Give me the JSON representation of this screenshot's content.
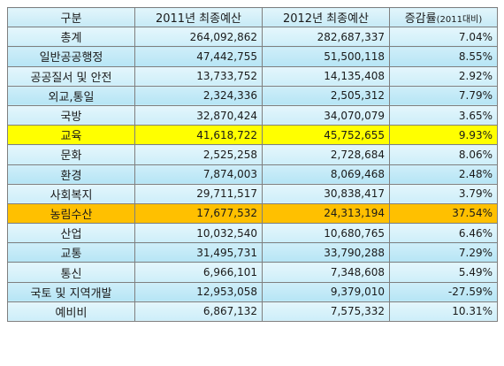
{
  "table": {
    "headers": {
      "category": "구분",
      "budget_2011": "2011년 최종예산",
      "budget_2012": "2012년 최종예산",
      "change_main": "증감률",
      "change_sub": "(2011대비)"
    },
    "rows": [
      {
        "category": "총계",
        "budget_2011": "264,092,862",
        "budget_2012": "282,687,337",
        "change": "7.04%"
      },
      {
        "category": "일반공공행정",
        "budget_2011": "47,442,755",
        "budget_2012": "51,500,118",
        "change": "8.55%"
      },
      {
        "category": "공공질서 및 안전",
        "budget_2011": "13,733,752",
        "budget_2012": "14,135,408",
        "change": "2.92%"
      },
      {
        "category": "외교,통일",
        "budget_2011": "2,324,336",
        "budget_2012": "2,505,312",
        "change": "7.79%"
      },
      {
        "category": "국방",
        "budget_2011": "32,870,424",
        "budget_2012": "34,070,079",
        "change": "3.65%"
      },
      {
        "category": "교육",
        "budget_2011": "41,618,722",
        "budget_2012": "45,752,655",
        "change": "9.93%",
        "highlight": "#ffff00"
      },
      {
        "category": "문화",
        "budget_2011": "2,525,258",
        "budget_2012": "2,728,684",
        "change": "8.06%"
      },
      {
        "category": "환경",
        "budget_2011": "7,874,003",
        "budget_2012": "8,069,468",
        "change": "2.48%"
      },
      {
        "category": "사회복지",
        "budget_2011": "29,711,517",
        "budget_2012": "30,838,417",
        "change": "3.79%"
      },
      {
        "category": "농림수산",
        "budget_2011": "17,677,532",
        "budget_2012": "24,313,194",
        "change": "37.54%",
        "highlight": "#ffc000"
      },
      {
        "category": "산업",
        "budget_2011": "10,032,540",
        "budget_2012": "10,680,765",
        "change": "6.46%"
      },
      {
        "category": "교통",
        "budget_2011": "31,495,731",
        "budget_2012": "33,790,288",
        "change": "7.29%"
      },
      {
        "category": "통신",
        "budget_2011": "6,966,101",
        "budget_2012": "7,348,608",
        "change": "5.49%"
      },
      {
        "category": "국토 및 지역개발",
        "budget_2011": "12,953,058",
        "budget_2012": "9,379,010",
        "change": "-27.59%"
      },
      {
        "category": "예비비",
        "budget_2011": "6,867,132",
        "budget_2012": "7,575,332",
        "change": "10.31%"
      }
    ]
  },
  "colors": {
    "header_bg": "#d3eff9",
    "row_light": "#d9f2fb",
    "row_dark": "#bfe8f6",
    "highlight_yellow": "#ffff00",
    "highlight_orange": "#ffc000",
    "border": "#7f7f7f"
  }
}
